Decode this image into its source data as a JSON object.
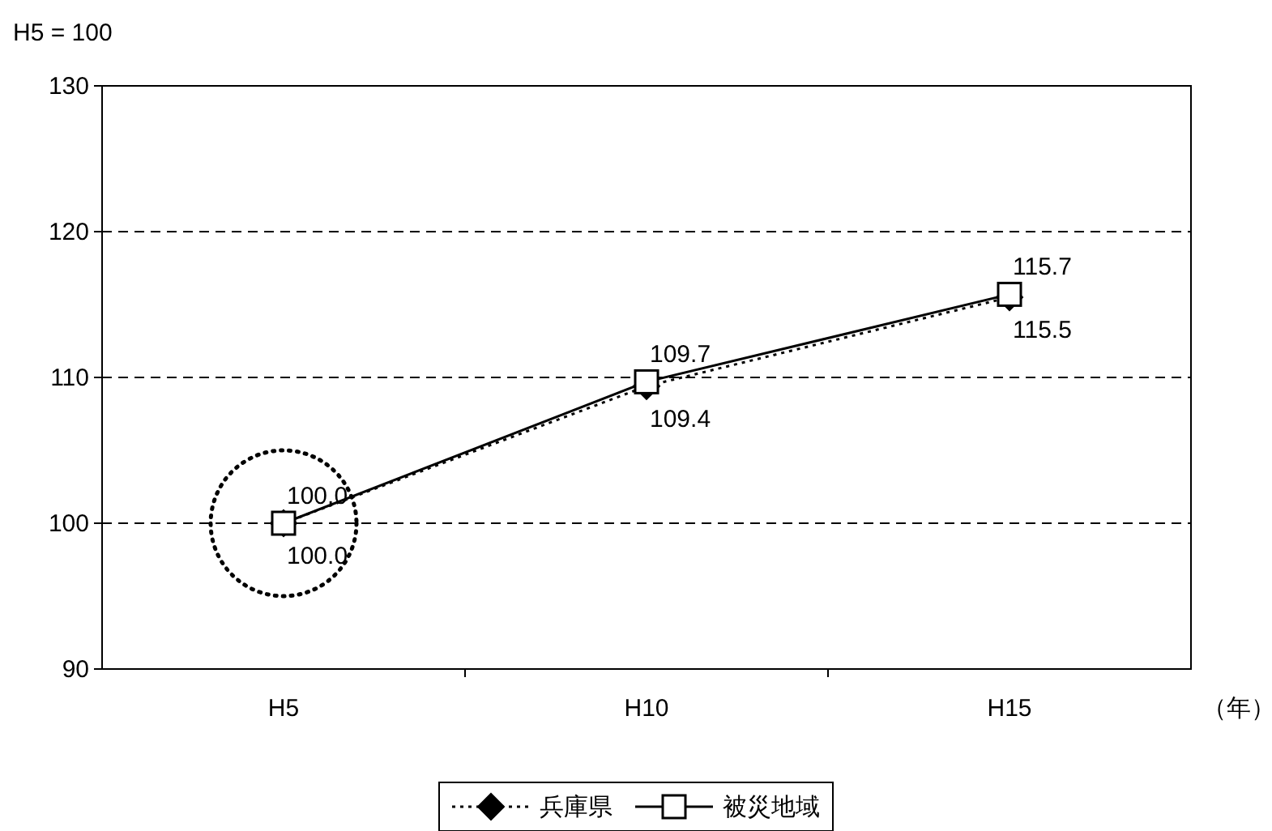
{
  "chart_data": {
    "type": "line",
    "ylabel": "H5 = 100",
    "xlabel": "（年）",
    "categories": [
      "H5",
      "H10",
      "H15"
    ],
    "series": [
      {
        "name": "兵庫県",
        "color": "#000000",
        "values": [
          100.0,
          109.4,
          115.5
        ],
        "value_labels": [
          "100.0",
          "109.4",
          "115.5"
        ],
        "marker": "diamond",
        "line_style": "dotted"
      },
      {
        "name": "被災地域",
        "color": "#000000",
        "values": [
          100.0,
          109.7,
          115.7
        ],
        "value_labels": [
          "100.0",
          "109.7",
          "115.7"
        ],
        "marker": "square",
        "line_style": "solid"
      }
    ],
    "ylim": [
      90,
      130
    ],
    "yticks": [
      90,
      100,
      110,
      120,
      130
    ],
    "grid": "y",
    "legend": "bottom"
  }
}
